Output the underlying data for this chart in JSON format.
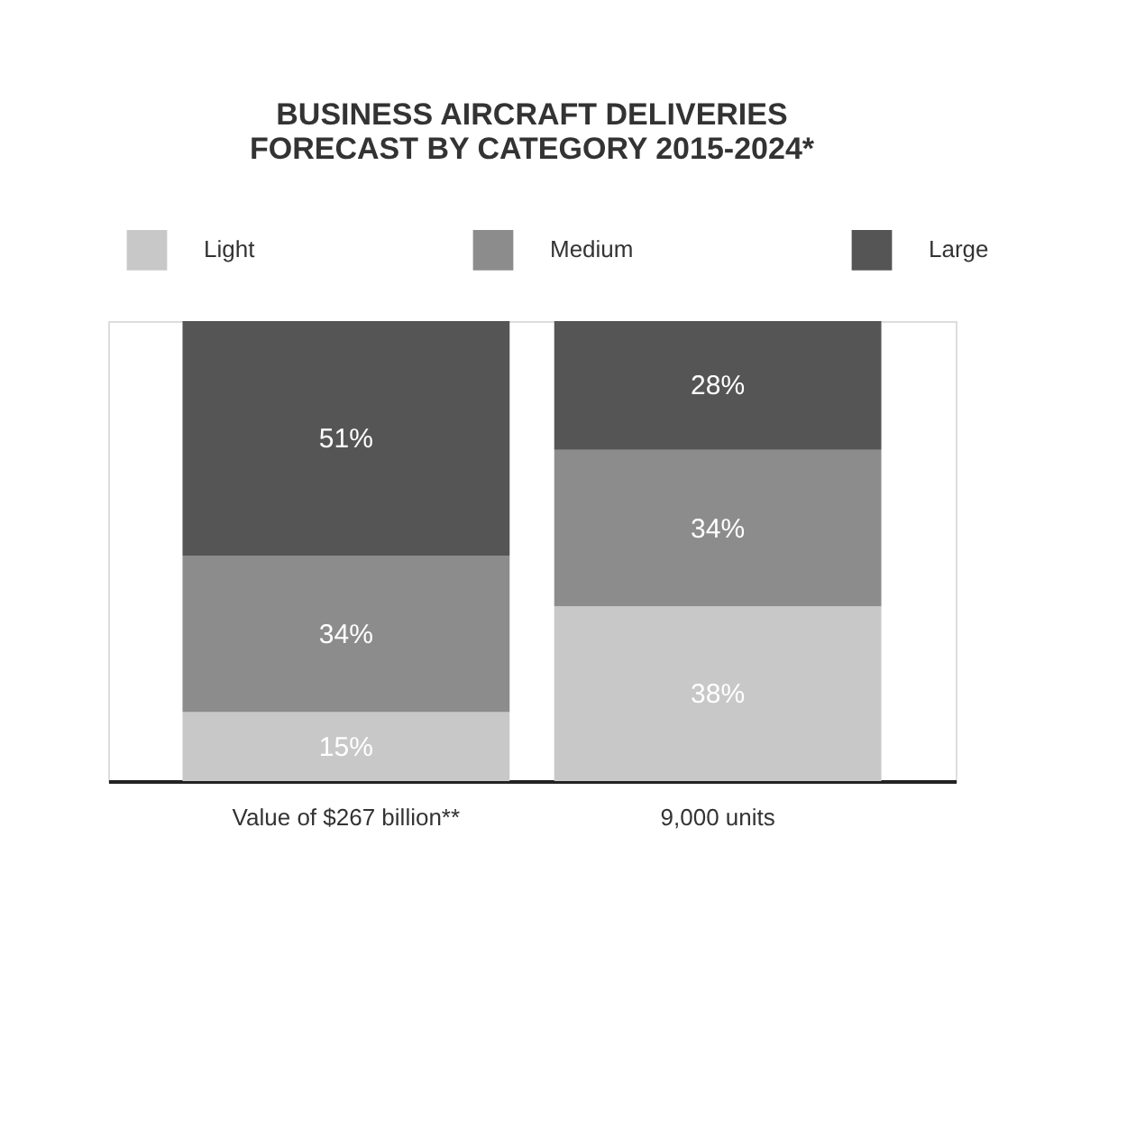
{
  "chart_data": {
    "type": "bar",
    "title": [
      "BUSINESS AIRCRAFT DELIVERIES",
      "FORECAST BY CATEGORY 2015-2024*"
    ],
    "categories": [
      "Value of $267 billion**",
      "9,000 units"
    ],
    "stacked": true,
    "legend": "top",
    "series": [
      {
        "name": "Light",
        "color": "#c8c8c8",
        "values": [
          15,
          38
        ],
        "value_labels": [
          "15%",
          "38%"
        ]
      },
      {
        "name": "Medium",
        "color": "#8c8c8c",
        "values": [
          34,
          34
        ],
        "value_labels": [
          "34%",
          "34%"
        ]
      },
      {
        "name": "Large",
        "color": "#555555",
        "values": [
          51,
          28
        ],
        "value_labels": [
          "51%",
          "28%"
        ]
      }
    ]
  }
}
